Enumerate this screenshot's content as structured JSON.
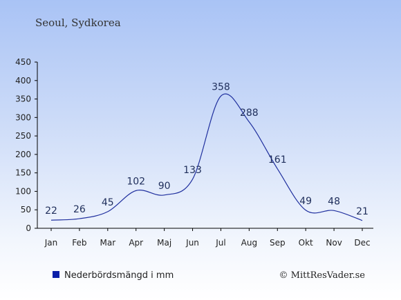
{
  "title": "Seoul, Sydkorea",
  "legend": {
    "label": "Nederbördsmängd i mm"
  },
  "credit": "© MittResVader.se",
  "colors": {
    "line": "#1f2f9e",
    "legend_swatch": "#0a1fa8",
    "axis": "#000000"
  },
  "chart_data": {
    "type": "line",
    "categories": [
      "Jan",
      "Feb",
      "Mar",
      "Apr",
      "Maj",
      "Jun",
      "Jul",
      "Aug",
      "Sep",
      "Okt",
      "Nov",
      "Dec"
    ],
    "values": [
      22,
      26,
      45,
      102,
      90,
      133,
      358,
      288,
      161,
      49,
      48,
      21
    ],
    "y_ticks": [
      0,
      50,
      100,
      150,
      200,
      250,
      300,
      350,
      400,
      450
    ],
    "ylim": [
      0,
      450
    ],
    "title": "Seoul, Sydkorea",
    "legend_position": "bottom-left",
    "grid": false
  }
}
